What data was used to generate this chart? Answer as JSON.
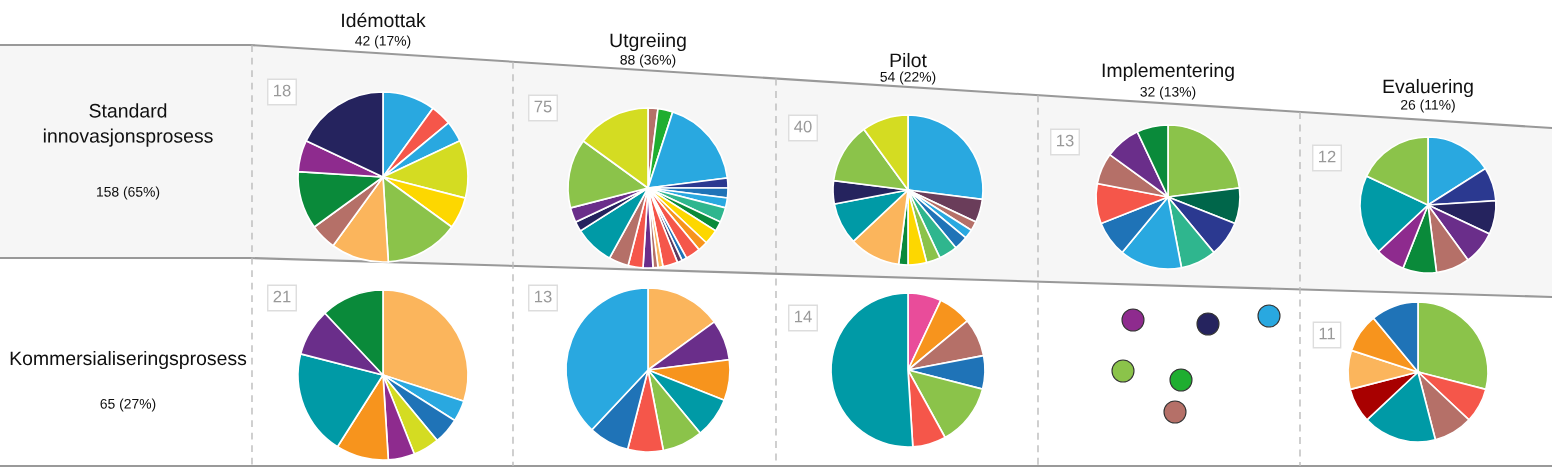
{
  "chart_data": [
    {
      "type": "other",
      "title": "Standard innovasjonsprosess",
      "subtitle": "158 (65%)"
    },
    {
      "type": "pie",
      "title": "Idémottak",
      "subtitle": "42 (17%)",
      "annotations": [
        "18"
      ],
      "categories": [
        null,
        null,
        null,
        null,
        null,
        null,
        null,
        null,
        null,
        null,
        null
      ],
      "values": [
        10,
        4,
        4,
        11,
        6,
        14,
        11,
        5,
        11,
        6,
        18
      ],
      "colors": [
        "#29a8e0",
        "#f5564a",
        "#29a8e0",
        "#d4dc22",
        "#fdd700",
        "#8bc34a",
        "#fbb55c",
        "#b57068",
        "#0a8a3a",
        "#8e2b8e",
        "#25235e"
      ]
    },
    {
      "type": "pie",
      "title": "Utgreiing",
      "subtitle": "88 (36%)",
      "annotations": [
        "75"
      ],
      "categories": [
        null,
        null,
        null,
        null,
        null,
        null,
        null,
        null,
        null,
        null,
        null,
        null,
        null,
        null,
        null,
        null,
        null,
        null,
        null,
        null,
        null,
        null,
        null,
        null
      ],
      "values": [
        2,
        3,
        18,
        2,
        2,
        2,
        3,
        2,
        3,
        2,
        3,
        1,
        1,
        3,
        1,
        1,
        2,
        3,
        4,
        8,
        2,
        3,
        14,
        15
      ],
      "colors": [
        "#b57068",
        "#1fae30",
        "#29a8e0",
        "#2b3990",
        "#1f73b7",
        "#29a8e0",
        "#2fb68e",
        "#0a8a3a",
        "#fdd700",
        "#f7941d",
        "#f5564a",
        "#1f73b7",
        "#5e3a5e",
        "#f5564a",
        "#fbb55c",
        "#b57068",
        "#6a2e8a",
        "#f5564a",
        "#b57068",
        "#009aa6",
        "#25235e",
        "#6a2e8a",
        "#8bc34a",
        "#d4dc22"
      ]
    },
    {
      "type": "pie",
      "title": "Pilot",
      "subtitle": "54 (22%)",
      "annotations": [
        "40"
      ],
      "categories": [
        null,
        null,
        null,
        null,
        null,
        null,
        null,
        null,
        null,
        null,
        null,
        null,
        null,
        null
      ],
      "values": [
        27,
        5,
        2,
        2,
        3,
        4,
        3,
        4,
        2,
        11,
        9,
        5,
        13,
        10
      ],
      "colors": [
        "#29a8e0",
        "#6a3d5a",
        "#b57068",
        "#29a8e0",
        "#1f73b7",
        "#2fb68e",
        "#8bc34a",
        "#fdd700",
        "#0a8a3a",
        "#fbb55c",
        "#009aa6",
        "#25235e",
        "#8bc34a",
        "#d4dc22"
      ]
    },
    {
      "type": "pie",
      "title": "Implementering",
      "subtitle": "32 (13%)",
      "annotations": [
        "13"
      ],
      "categories": [
        null,
        null,
        null,
        null,
        null,
        null,
        null,
        null,
        null,
        null
      ],
      "values": [
        23,
        8,
        8,
        8,
        14,
        8,
        9,
        7,
        8,
        7
      ],
      "colors": [
        "#8bc34a",
        "#00664a",
        "#2b3990",
        "#2fb68e",
        "#29a8e0",
        "#1f73b7",
        "#f5564a",
        "#b57068",
        "#6a2e8a",
        "#0a8a3a"
      ]
    },
    {
      "type": "pie",
      "title": "Evaluering",
      "subtitle": "26 (11%)",
      "annotations": [
        "12"
      ],
      "categories": [
        null,
        null,
        null,
        null,
        null,
        null,
        null,
        null,
        null
      ],
      "values": [
        16,
        8,
        8,
        8,
        8,
        8,
        7,
        19,
        18
      ],
      "colors": [
        "#29a8e0",
        "#2b3990",
        "#25235e",
        "#6a2e8a",
        "#b57068",
        "#0a8a3a",
        "#8e2b8e",
        "#009aa6",
        "#8bc34a"
      ]
    },
    {
      "type": "other",
      "title": "Kommersialiseringsprosess",
      "subtitle": "65 (27%)"
    },
    {
      "type": "pie",
      "annotations": [
        "21"
      ],
      "categories": [
        null,
        null,
        null,
        null,
        null,
        null,
        null,
        null,
        null
      ],
      "values": [
        30,
        4,
        5,
        5,
        5,
        10,
        20,
        9,
        12
      ],
      "colors": [
        "#fbb55c",
        "#29a8e0",
        "#1f73b7",
        "#d4dc22",
        "#8e2b8e",
        "#f7941d",
        "#009aa6",
        "#6a2e8a",
        "#0a8a3a"
      ]
    },
    {
      "type": "pie",
      "annotations": [
        "13"
      ],
      "categories": [
        null,
        null,
        null,
        null,
        null,
        null,
        null,
        null
      ],
      "values": [
        15,
        8,
        8,
        8,
        8,
        7,
        8,
        38
      ],
      "colors": [
        "#fbb55c",
        "#6a2e8a",
        "#f7941d",
        "#009aa6",
        "#8bc34a",
        "#f5564a",
        "#1f73b7",
        "#29a8e0"
      ]
    },
    {
      "type": "pie",
      "annotations": [
        "14"
      ],
      "categories": [
        null,
        null,
        null,
        null,
        null,
        null,
        null
      ],
      "values": [
        7,
        7,
        8,
        7,
        13,
        7,
        51
      ],
      "colors": [
        "#e94c9a",
        "#f7941d",
        "#b57068",
        "#1f73b7",
        "#8bc34a",
        "#f5564a",
        "#009aa6"
      ]
    },
    {
      "type": "pie",
      "annotations": [
        "11"
      ],
      "categories": [
        null,
        null,
        null,
        null,
        null,
        null,
        null,
        null
      ],
      "values": [
        29,
        8,
        9,
        17,
        8,
        9,
        9,
        11
      ],
      "colors": [
        "#8bc34a",
        "#f5564a",
        "#b57068",
        "#009aa6",
        "#a80000",
        "#fbb55c",
        "#f7941d",
        "#1f73b7"
      ]
    }
  ]
}
